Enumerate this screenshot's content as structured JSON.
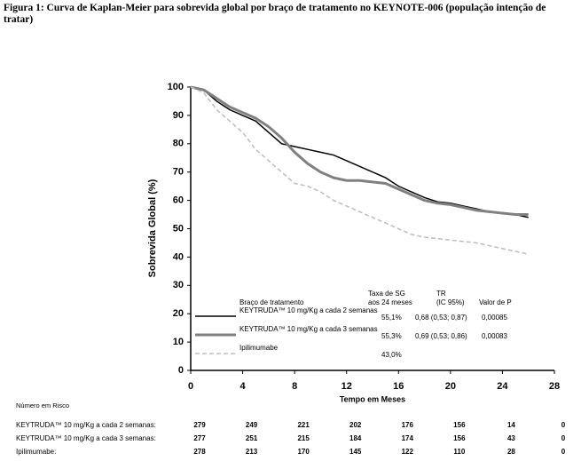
{
  "chart_data": {
    "type": "line",
    "title": "Figura 1: Curva de Kaplan-Meier para sobrevida global por braço de tratamento no KEYNOTE-006 (população intenção de tratar)",
    "xlabel": "Tempo em Meses",
    "ylabel": "Sobrevida Global (%)",
    "x": [
      0,
      1,
      2,
      3,
      4,
      5,
      6,
      7,
      8,
      9,
      10,
      11,
      12,
      13,
      14,
      15,
      16,
      17,
      18,
      19,
      20,
      21,
      22,
      23,
      24,
      25,
      26
    ],
    "series": [
      {
        "name": "KEYTRUDA™ 10 mg/Kg a cada 2 semanas",
        "color": "#000000",
        "width": 1.5,
        "values": [
          100,
          99,
          95,
          92,
          90,
          88,
          84,
          80,
          79,
          78,
          77,
          76,
          74,
          72,
          70,
          68,
          65,
          63,
          61,
          59.5,
          59,
          58,
          57,
          56,
          55.5,
          55,
          54
        ]
      },
      {
        "name": "KEYTRUDA™ 10 mg/Kg a cada 3 semanas",
        "color": "#808080",
        "width": 3,
        "values": [
          100,
          99,
          96,
          93,
          91,
          89,
          86,
          82,
          77,
          73,
          70,
          68,
          67,
          67,
          66.5,
          66,
          64,
          62,
          60,
          59,
          58.5,
          57.5,
          56.5,
          56,
          55.5,
          55,
          55
        ]
      },
      {
        "name": "Ipilimumabe",
        "color": "#bdbdbd",
        "width": 1.5,
        "dashed": true,
        "values": [
          100,
          98,
          92,
          88,
          84,
          78,
          74,
          70,
          66,
          65,
          63,
          60,
          58,
          56,
          54,
          52,
          50,
          48,
          47,
          46.5,
          46,
          45.5,
          45,
          44,
          43,
          42,
          41
        ]
      }
    ],
    "xlim": [
      0,
      28
    ],
    "xticks": [
      0,
      4,
      8,
      12,
      16,
      20,
      24,
      28
    ],
    "ylim": [
      0,
      100
    ],
    "yticks": [
      0,
      10,
      20,
      30,
      40,
      50,
      60,
      70,
      80,
      90,
      100
    ],
    "legend_table": {
      "headers": [
        [
          "Braço de tratamento"
        ],
        [
          "Taxa de SG",
          "aos 24 meses"
        ],
        [
          "TR",
          "(IC 95%)"
        ],
        [
          "Valor de P"
        ]
      ],
      "rows": [
        [
          "55,1%",
          "0,68 (0,53; 0,87)",
          "0,00085"
        ],
        [
          "55,3%",
          "0,69 (0,53; 0,86)",
          "0,00083"
        ],
        [
          "43,0%"
        ]
      ]
    },
    "risk_table": {
      "title": "Número em Risco",
      "rows": [
        {
          "label": "KEYTRUDA™ 10 mg/Kg a cada 2 semanas:",
          "values": [
            "279",
            "249",
            "221",
            "202",
            "176",
            "156",
            "14",
            "0"
          ]
        },
        {
          "label": "KEYTRUDA™ 10 mg/Kg a cada 3 semanas:",
          "values": [
            "277",
            "251",
            "215",
            "184",
            "174",
            "156",
            "43",
            "0"
          ]
        },
        {
          "label": "Ipilimumabe:",
          "values": [
            "278",
            "213",
            "170",
            "145",
            "122",
            "110",
            "28",
            "0"
          ]
        }
      ]
    }
  }
}
